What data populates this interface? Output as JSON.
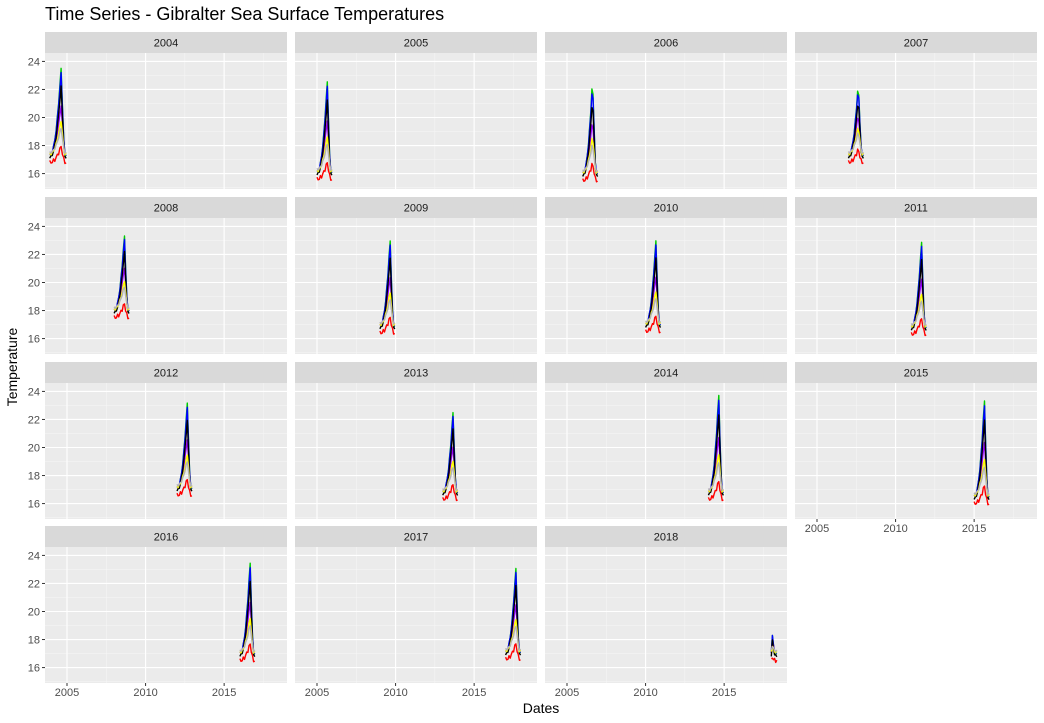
{
  "chart_data": {
    "type": "line",
    "title": "Time Series - Gibralter Sea Surface Temperatures",
    "xlabel": "Dates",
    "ylabel": "Temperature",
    "xlim": [
      2003.6,
      2019.0
    ],
    "ylim": [
      14.9,
      24.6
    ],
    "x_ticks": [
      2005,
      2010,
      2015
    ],
    "y_ticks": [
      16,
      18,
      20,
      22,
      24
    ],
    "grid": true,
    "legend": "none",
    "series_colors": [
      "#ff0000",
      "#00cc00",
      "#0000ff",
      "#9900ff",
      "#000000",
      "#ffff00",
      "#b3b3b3"
    ],
    "panels": [
      {
        "label": "2004",
        "start": 2003.9,
        "end": 2004.95,
        "peak": 2004.62,
        "base": 16.8,
        "top": 23.3
      },
      {
        "label": "2005",
        "start": 2005.0,
        "end": 2005.95,
        "peak": 2005.65,
        "base": 15.6,
        "top": 22.4
      },
      {
        "label": "2006",
        "start": 2006.0,
        "end": 2006.95,
        "peak": 2006.62,
        "base": 15.5,
        "top": 22.5
      },
      {
        "label": "2007",
        "start": 2007.0,
        "end": 2007.95,
        "peak": 2007.62,
        "base": 16.8,
        "top": 22.1
      },
      {
        "label": "2008",
        "start": 2008.0,
        "end": 2008.95,
        "peak": 2008.65,
        "base": 17.5,
        "top": 23.1
      },
      {
        "label": "2009",
        "start": 2009.0,
        "end": 2009.95,
        "peak": 2009.65,
        "base": 16.4,
        "top": 22.8
      },
      {
        "label": "2010",
        "start": 2010.0,
        "end": 2010.95,
        "peak": 2010.65,
        "base": 16.5,
        "top": 22.8
      },
      {
        "label": "2011",
        "start": 2011.0,
        "end": 2011.95,
        "peak": 2011.65,
        "base": 16.3,
        "top": 22.7
      },
      {
        "label": "2012",
        "start": 2012.0,
        "end": 2012.95,
        "peak": 2012.65,
        "base": 16.6,
        "top": 23.0
      },
      {
        "label": "2013",
        "start": 2013.0,
        "end": 2013.95,
        "peak": 2013.65,
        "base": 16.3,
        "top": 22.3
      },
      {
        "label": "2014",
        "start": 2014.0,
        "end": 2014.95,
        "peak": 2014.65,
        "base": 16.3,
        "top": 23.6
      },
      {
        "label": "2015",
        "start": 2015.0,
        "end": 2015.95,
        "peak": 2015.65,
        "base": 16.0,
        "top": 23.2
      },
      {
        "label": "2016",
        "start": 2016.0,
        "end": 2016.95,
        "peak": 2016.65,
        "base": 16.5,
        "top": 23.3
      },
      {
        "label": "2017",
        "start": 2017.0,
        "end": 2017.95,
        "peak": 2017.65,
        "base": 16.6,
        "top": 22.9
      },
      {
        "label": "2018",
        "start": 2018.0,
        "end": 2018.35,
        "peak": 2018.0,
        "base": 16.5,
        "top": 18.4
      }
    ]
  }
}
